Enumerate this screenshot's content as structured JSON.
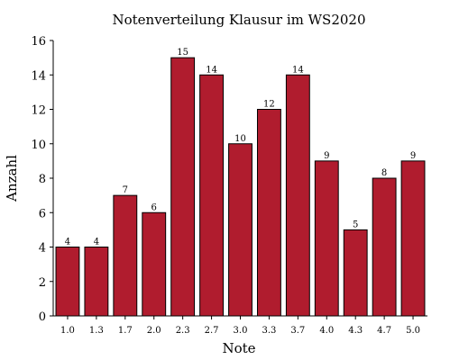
{
  "chart_data": {
    "type": "bar",
    "title": "Notenverteilung Klausur im WS2020",
    "xlabel": "Note",
    "ylabel": "Anzahl",
    "categories": [
      "1.0",
      "1.3",
      "1.7",
      "2.0",
      "2.3",
      "2.7",
      "3.0",
      "3.3",
      "3.7",
      "4.0",
      "4.3",
      "4.7",
      "5.0"
    ],
    "values": [
      4,
      4,
      7,
      6,
      15,
      14,
      10,
      12,
      14,
      9,
      5,
      8,
      9
    ],
    "data_labels": [
      "4",
      "4",
      "7",
      "6",
      "15",
      "14",
      "10",
      "12",
      "14",
      "9",
      "5",
      "8",
      "9"
    ],
    "yticks": [
      0,
      2,
      4,
      6,
      8,
      10,
      12,
      14,
      16
    ],
    "ylim": [
      0,
      16
    ],
    "grid": false,
    "bar_color": "#b01c2e",
    "bar_edge_color": "#000000"
  }
}
